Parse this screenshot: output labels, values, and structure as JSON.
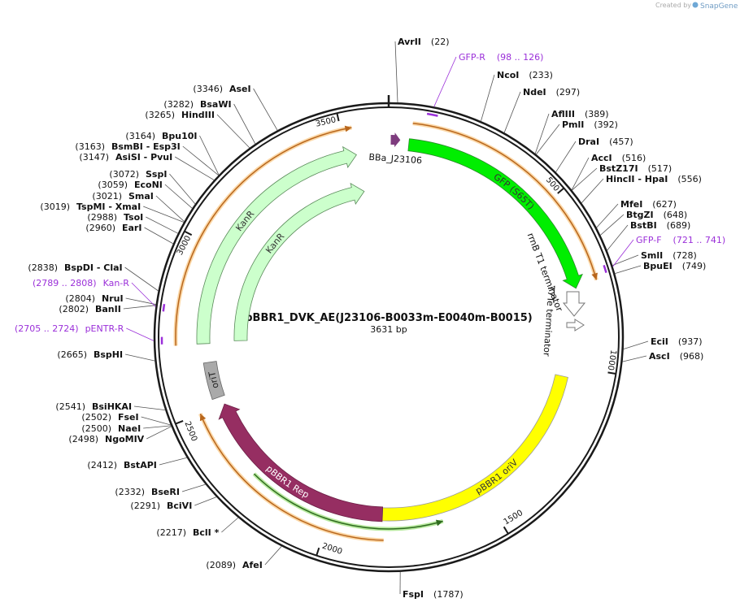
{
  "credit": {
    "prefix": "Created by",
    "brand": "SnapGene"
  },
  "plasmid": {
    "name": "pBBR1_DVK_AE(J23106-B0033m-E0040m-B0015)",
    "length": {
      "value": 3631,
      "label": "3631 bp"
    }
  },
  "ticks": [
    500,
    1000,
    1500,
    2000,
    2500,
    3000,
    3500
  ],
  "sites": [
    {
      "name": "AvrII",
      "position": {
        "value": 22,
        "label": "(22)"
      }
    },
    {
      "name": "NcoI",
      "position": {
        "value": 233,
        "label": "(233)"
      }
    },
    {
      "name": "NdeI",
      "position": {
        "value": 297,
        "label": "(297)"
      }
    },
    {
      "name": "AflIII",
      "position": {
        "value": 389,
        "label": "(389)"
      }
    },
    {
      "name": "PmlI",
      "position": {
        "value": 392,
        "label": "(392)"
      }
    },
    {
      "name": "DraI",
      "position": {
        "value": 457,
        "label": "(457)"
      }
    },
    {
      "name": "AccI",
      "position": {
        "value": 516,
        "label": "(516)"
      }
    },
    {
      "name": "BstZ17I",
      "position": {
        "value": 517,
        "label": "(517)"
      }
    },
    {
      "name": "HincII - HpaI",
      "position": {
        "value": 556,
        "label": "(556)"
      }
    },
    {
      "name": "MfeI",
      "position": {
        "value": 627,
        "label": "(627)"
      }
    },
    {
      "name": "BtgZI",
      "position": {
        "value": 648,
        "label": "(648)"
      }
    },
    {
      "name": "BstBI",
      "position": {
        "value": 689,
        "label": "(689)"
      }
    },
    {
      "name": "SmlI",
      "position": {
        "value": 728,
        "label": "(728)"
      }
    },
    {
      "name": "BpuEI",
      "position": {
        "value": 749,
        "label": "(749)"
      }
    },
    {
      "name": "EciI",
      "position": {
        "value": 937,
        "label": "(937)"
      }
    },
    {
      "name": "AscI",
      "position": {
        "value": 968,
        "label": "(968)"
      }
    },
    {
      "name": "FspI",
      "position": {
        "value": 1787,
        "label": "(1787)"
      }
    },
    {
      "name": "AfeI",
      "position": {
        "value": 2089,
        "label": "(2089)"
      }
    },
    {
      "name": "BclI *",
      "position": {
        "value": 2217,
        "label": "(2217)"
      }
    },
    {
      "name": "BciVI",
      "position": {
        "value": 2291,
        "label": "(2291)"
      }
    },
    {
      "name": "BseRI",
      "position": {
        "value": 2332,
        "label": "(2332)"
      }
    },
    {
      "name": "BstAPI",
      "position": {
        "value": 2412,
        "label": "(2412)"
      }
    },
    {
      "name": "NgoMIV",
      "position": {
        "value": 2498,
        "label": "(2498)"
      }
    },
    {
      "name": "NaeI",
      "position": {
        "value": 2500,
        "label": "(2500)"
      }
    },
    {
      "name": "FseI",
      "position": {
        "value": 2502,
        "label": "(2502)"
      }
    },
    {
      "name": "BsiHKAI",
      "position": {
        "value": 2541,
        "label": "(2541)"
      }
    },
    {
      "name": "BspHI",
      "position": {
        "value": 2665,
        "label": "(2665)"
      }
    },
    {
      "name": "BanII",
      "position": {
        "value": 2802,
        "label": "(2802)"
      }
    },
    {
      "name": "NruI",
      "position": {
        "value": 2804,
        "label": "(2804)"
      }
    },
    {
      "name": "BspDI - ClaI",
      "position": {
        "value": 2838,
        "label": "(2838)"
      }
    },
    {
      "name": "EarI",
      "position": {
        "value": 2960,
        "label": "(2960)"
      }
    },
    {
      "name": "TsoI",
      "position": {
        "value": 2988,
        "label": "(2988)"
      }
    },
    {
      "name": "TspMI - XmaI",
      "position": {
        "value": 3019,
        "label": "(3019)"
      }
    },
    {
      "name": "SmaI",
      "position": {
        "value": 3021,
        "label": "(3021)"
      }
    },
    {
      "name": "EcoNI",
      "position": {
        "value": 3059,
        "label": "(3059)"
      }
    },
    {
      "name": "SspI",
      "position": {
        "value": 3072,
        "label": "(3072)"
      }
    },
    {
      "name": "AsiSI - PvuI",
      "position": {
        "value": 3147,
        "label": "(3147)"
      }
    },
    {
      "name": "BsmBI - Esp3I",
      "position": {
        "value": 3163,
        "label": "(3163)"
      }
    },
    {
      "name": "Bpu10I",
      "position": {
        "value": 3164,
        "label": "(3164)"
      }
    },
    {
      "name": "HindIII",
      "position": {
        "value": 3265,
        "label": "(3265)"
      }
    },
    {
      "name": "BsaWI",
      "position": {
        "value": 3282,
        "label": "(3282)"
      }
    },
    {
      "name": "AseI",
      "position": {
        "value": 3346,
        "label": "(3346)"
      }
    }
  ],
  "primers": [
    {
      "name": "GFP-R",
      "range": {
        "start": 98,
        "end": 126,
        "label": "(98 .. 126)"
      }
    },
    {
      "name": "GFP-F",
      "range": {
        "start": 721,
        "end": 741,
        "label": "(721 .. 741)"
      }
    },
    {
      "name": "Kan-R",
      "range": {
        "start": 2789,
        "end": 2808,
        "label": "(2789 .. 2808)"
      }
    },
    {
      "name": "pENTR-R",
      "range": {
        "start": 2705,
        "end": 2724,
        "label": "(2705 .. 2724)"
      }
    }
  ],
  "features": [
    {
      "name": "BBa_J23106"
    },
    {
      "name": "GFP (S65T)"
    },
    {
      "name": "rrnB T1 terminator"
    },
    {
      "name": "T7Te terminator"
    },
    {
      "name": "pBBR1 oriV"
    },
    {
      "name": "pBBR1 Rep"
    },
    {
      "name": "oriT"
    },
    {
      "name": "KanR"
    },
    {
      "name": "KanR"
    }
  ]
}
